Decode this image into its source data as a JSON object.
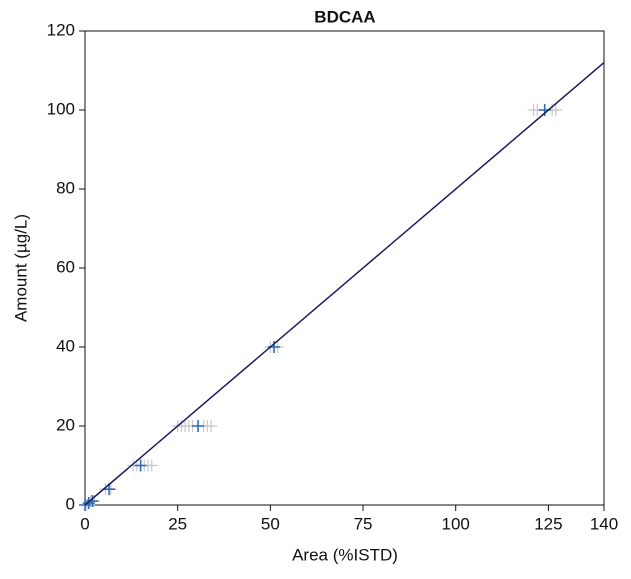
{
  "chart_data": {
    "type": "scatter",
    "title": "BDCAA",
    "x_label": "Area (%ISTD)",
    "y_label": "Amount (µg/L)",
    "xlim": [
      0,
      140
    ],
    "ylim": [
      0,
      120
    ],
    "xticks": [
      0,
      25,
      50,
      75,
      100,
      125,
      140
    ],
    "yticks": [
      0,
      20,
      40,
      60,
      80,
      100,
      120
    ],
    "series": [
      {
        "color": "#c8c8c8",
        "x": [
          0.5,
          1.5,
          2.5,
          5.5,
          7,
          13,
          14,
          16,
          17,
          18,
          25,
          26,
          27,
          28,
          29,
          32,
          33,
          34,
          50,
          52,
          121,
          122,
          126,
          127
        ],
        "values": [
          0,
          1,
          1,
          4,
          4,
          10,
          10,
          10,
          10,
          10,
          20,
          20,
          20,
          20,
          20,
          20,
          20,
          20,
          40,
          40,
          100,
          100,
          100,
          100
        ]
      },
      {
        "color": "#2a6db5",
        "x": [
          0,
          1,
          2,
          6.5,
          15,
          30.5,
          51,
          124
        ],
        "values": [
          0,
          0.5,
          1,
          4,
          10,
          20,
          40,
          100
        ]
      }
    ],
    "fit_line": {
      "color": "#1a1a5e",
      "x": [
        0,
        140
      ],
      "values": [
        0,
        112
      ]
    }
  }
}
